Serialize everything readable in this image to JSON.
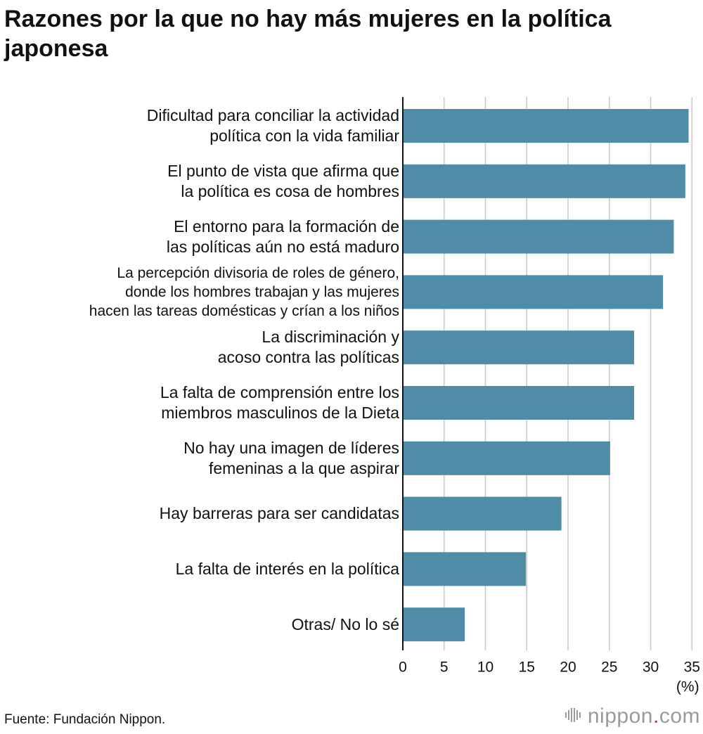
{
  "chart_data": {
    "type": "bar",
    "orientation": "horizontal",
    "title": "Razones por la que no hay más mujeres en la política japonesa",
    "categories": [
      [
        "Dificultad para conciliar la actividad",
        "política con la vida familiar"
      ],
      [
        "El punto de vista que afirma que",
        "la política es cosa de hombres"
      ],
      [
        "El entorno para la formación de",
        "las políticas aún no está maduro"
      ],
      [
        "La percepción divisoria de roles de género,",
        "donde los hombres trabajan y las mujeres",
        "hacen las tareas domésticas y crían a los niños"
      ],
      [
        "La discriminación y",
        "acoso contra las políticas"
      ],
      [
        "La falta de comprensión entre los",
        "miembros masculinos de la Dieta"
      ],
      [
        "No hay una imagen de líderes",
        "femeninas a la que aspirar"
      ],
      [
        "Hay barreras para ser candidatas"
      ],
      [
        "La falta de interés en la política"
      ],
      [
        "Otras/ No lo sé"
      ]
    ],
    "values": [
      34.6,
      34.2,
      32.8,
      31.5,
      28.0,
      28.0,
      25.1,
      19.2,
      14.9,
      7.5
    ],
    "xlim": [
      0,
      35
    ],
    "xticks": [
      "0",
      "5",
      "10",
      "15",
      "20",
      "25",
      "30",
      "35"
    ],
    "xlabel": "(%)",
    "ylabel": "",
    "grid": true,
    "bar_color": "#4e8ca7",
    "gridline_color": "#c9c9c9",
    "axis_color": "#111111"
  },
  "footer": {
    "source": "Fuente: Fundación Nippon.",
    "brand_name": "nippon",
    "brand_dot": ".",
    "brand_tld": "com",
    "brand_dot_color": "#d92b2b"
  }
}
